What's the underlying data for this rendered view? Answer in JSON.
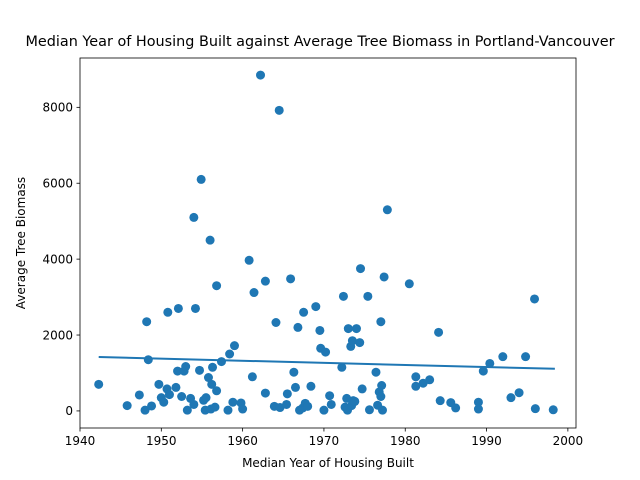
{
  "chart_data": {
    "type": "scatter",
    "title": "Median Year of Housing Built against Average Tree Biomass in Portland-Vancouver",
    "xlabel": "Median Year of Housing Built",
    "ylabel": "Average Tree Biomass",
    "xlim": [
      1940,
      2001
    ],
    "ylim": [
      -450,
      9300
    ],
    "xticks": [
      1940,
      1950,
      1960,
      1970,
      1980,
      1990,
      2000
    ],
    "yticks": [
      0,
      2000,
      4000,
      6000,
      8000
    ],
    "grid": false,
    "legend": "none",
    "colors": {
      "points": "#1f77b4",
      "trend": "#1f77b4"
    },
    "trend_line": {
      "x": [
        1942.3,
        1998.4
      ],
      "y": [
        1420,
        1110
      ]
    },
    "points": [
      {
        "x": 1942.3,
        "y": 700
      },
      {
        "x": 1945.8,
        "y": 140
      },
      {
        "x": 1947.3,
        "y": 420
      },
      {
        "x": 1948.0,
        "y": 20
      },
      {
        "x": 1948.2,
        "y": 2350
      },
      {
        "x": 1948.4,
        "y": 1350
      },
      {
        "x": 1948.8,
        "y": 130
      },
      {
        "x": 1949.7,
        "y": 700
      },
      {
        "x": 1950.0,
        "y": 350
      },
      {
        "x": 1950.3,
        "y": 230
      },
      {
        "x": 1950.7,
        "y": 580
      },
      {
        "x": 1950.8,
        "y": 2600
      },
      {
        "x": 1951.0,
        "y": 430
      },
      {
        "x": 1951.8,
        "y": 620
      },
      {
        "x": 1952.0,
        "y": 1050
      },
      {
        "x": 1952.1,
        "y": 2700
      },
      {
        "x": 1952.5,
        "y": 380
      },
      {
        "x": 1952.8,
        "y": 1050
      },
      {
        "x": 1953.0,
        "y": 1170
      },
      {
        "x": 1953.2,
        "y": 20
      },
      {
        "x": 1953.6,
        "y": 330
      },
      {
        "x": 1954.0,
        "y": 5100
      },
      {
        "x": 1954.2,
        "y": 2700
      },
      {
        "x": 1954.0,
        "y": 170
      },
      {
        "x": 1954.7,
        "y": 1070
      },
      {
        "x": 1954.9,
        "y": 6100
      },
      {
        "x": 1955.2,
        "y": 280
      },
      {
        "x": 1955.4,
        "y": 20
      },
      {
        "x": 1955.5,
        "y": 350
      },
      {
        "x": 1955.8,
        "y": 880
      },
      {
        "x": 1956.0,
        "y": 4500
      },
      {
        "x": 1956.1,
        "y": 50
      },
      {
        "x": 1956.2,
        "y": 700
      },
      {
        "x": 1956.3,
        "y": 1150
      },
      {
        "x": 1956.6,
        "y": 100
      },
      {
        "x": 1956.8,
        "y": 3300
      },
      {
        "x": 1956.8,
        "y": 530
      },
      {
        "x": 1957.4,
        "y": 1300
      },
      {
        "x": 1958.2,
        "y": 20
      },
      {
        "x": 1958.4,
        "y": 1500
      },
      {
        "x": 1958.8,
        "y": 230
      },
      {
        "x": 1959.0,
        "y": 1720
      },
      {
        "x": 1959.8,
        "y": 210
      },
      {
        "x": 1960.0,
        "y": 50
      },
      {
        "x": 1960.8,
        "y": 3970
      },
      {
        "x": 1961.2,
        "y": 900
      },
      {
        "x": 1961.4,
        "y": 3120
      },
      {
        "x": 1962.2,
        "y": 8850
      },
      {
        "x": 1962.8,
        "y": 3420
      },
      {
        "x": 1962.8,
        "y": 470
      },
      {
        "x": 1963.9,
        "y": 120
      },
      {
        "x": 1964.1,
        "y": 2330
      },
      {
        "x": 1964.5,
        "y": 7920
      },
      {
        "x": 1964.6,
        "y": 90
      },
      {
        "x": 1965.4,
        "y": 170
      },
      {
        "x": 1965.5,
        "y": 450
      },
      {
        "x": 1965.9,
        "y": 3480
      },
      {
        "x": 1966.3,
        "y": 1020
      },
      {
        "x": 1966.5,
        "y": 620
      },
      {
        "x": 1966.8,
        "y": 2200
      },
      {
        "x": 1967.0,
        "y": 20
      },
      {
        "x": 1967.4,
        "y": 80
      },
      {
        "x": 1967.5,
        "y": 2600
      },
      {
        "x": 1967.7,
        "y": 200
      },
      {
        "x": 1968.0,
        "y": 120
      },
      {
        "x": 1968.4,
        "y": 650
      },
      {
        "x": 1969.0,
        "y": 2750
      },
      {
        "x": 1969.5,
        "y": 2120
      },
      {
        "x": 1969.6,
        "y": 1650
      },
      {
        "x": 1970.0,
        "y": 20
      },
      {
        "x": 1970.2,
        "y": 1550
      },
      {
        "x": 1970.7,
        "y": 400
      },
      {
        "x": 1970.9,
        "y": 170
      },
      {
        "x": 1972.2,
        "y": 1150
      },
      {
        "x": 1972.4,
        "y": 3020
      },
      {
        "x": 1972.6,
        "y": 100
      },
      {
        "x": 1972.8,
        "y": 330
      },
      {
        "x": 1972.9,
        "y": 20
      },
      {
        "x": 1973.0,
        "y": 2170
      },
      {
        "x": 1973.3,
        "y": 1700
      },
      {
        "x": 1973.4,
        "y": 140
      },
      {
        "x": 1973.5,
        "y": 1850
      },
      {
        "x": 1973.6,
        "y": 270
      },
      {
        "x": 1973.8,
        "y": 250
      },
      {
        "x": 1974.0,
        "y": 2170
      },
      {
        "x": 1974.4,
        "y": 1800
      },
      {
        "x": 1974.5,
        "y": 3750
      },
      {
        "x": 1974.7,
        "y": 580
      },
      {
        "x": 1975.4,
        "y": 3020
      },
      {
        "x": 1975.6,
        "y": 30
      },
      {
        "x": 1976.4,
        "y": 1020
      },
      {
        "x": 1976.6,
        "y": 150
      },
      {
        "x": 1976.8,
        "y": 500
      },
      {
        "x": 1977.0,
        "y": 2350
      },
      {
        "x": 1977.0,
        "y": 380
      },
      {
        "x": 1977.1,
        "y": 670
      },
      {
        "x": 1977.2,
        "y": 20
      },
      {
        "x": 1977.4,
        "y": 3530
      },
      {
        "x": 1977.8,
        "y": 5300
      },
      {
        "x": 1980.5,
        "y": 3350
      },
      {
        "x": 1981.3,
        "y": 900
      },
      {
        "x": 1981.3,
        "y": 650
      },
      {
        "x": 1982.2,
        "y": 730
      },
      {
        "x": 1983.0,
        "y": 820
      },
      {
        "x": 1984.1,
        "y": 2070
      },
      {
        "x": 1984.3,
        "y": 270
      },
      {
        "x": 1985.6,
        "y": 220
      },
      {
        "x": 1986.2,
        "y": 80
      },
      {
        "x": 1989.0,
        "y": 230
      },
      {
        "x": 1989.0,
        "y": 50
      },
      {
        "x": 1989.6,
        "y": 1050
      },
      {
        "x": 1990.4,
        "y": 1250
      },
      {
        "x": 1992.0,
        "y": 1430
      },
      {
        "x": 1993.0,
        "y": 350
      },
      {
        "x": 1994.0,
        "y": 480
      },
      {
        "x": 1994.8,
        "y": 1430
      },
      {
        "x": 1995.9,
        "y": 2950
      },
      {
        "x": 1996.0,
        "y": 60
      },
      {
        "x": 1998.2,
        "y": 30
      }
    ]
  }
}
